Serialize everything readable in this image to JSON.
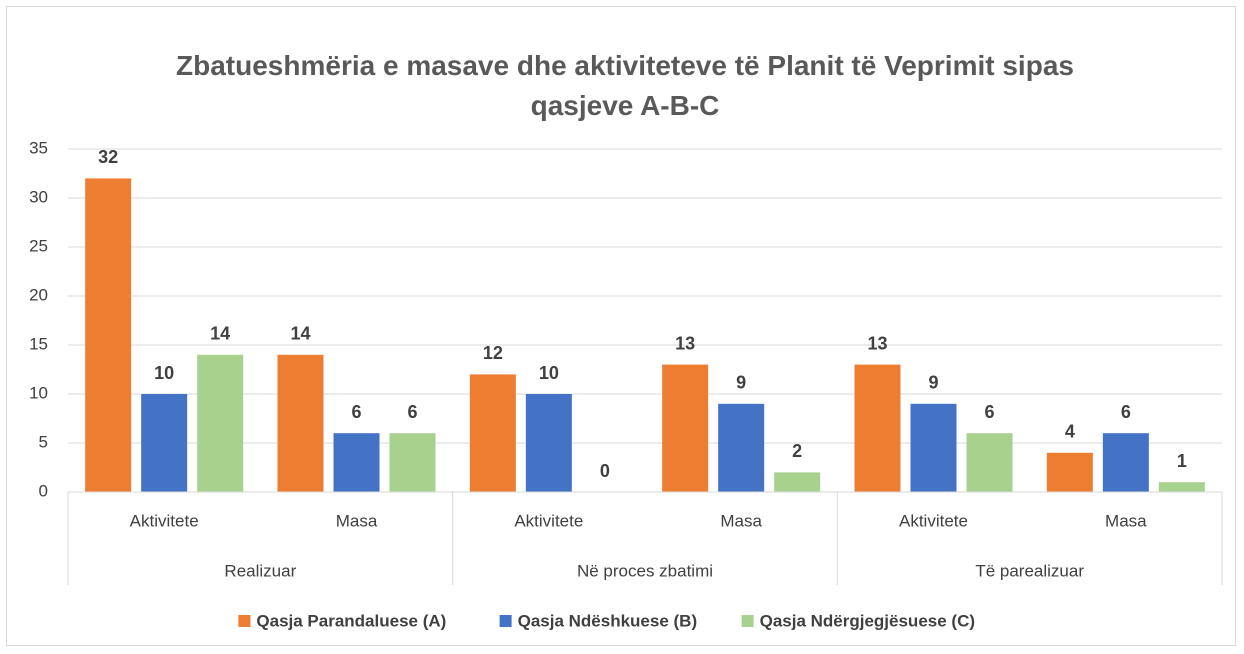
{
  "chart_data": {
    "type": "bar",
    "title": "Zbatueshmëria e masave dhe aktiviteteve të Planit të Veprimit sipas qasjeve A-B-C",
    "groups": [
      {
        "name": "Realizuar",
        "categories": [
          "Aktivitete",
          "Masa"
        ]
      },
      {
        "name": "Në proces zbatimi",
        "categories": [
          "Aktivitete",
          "Masa"
        ]
      },
      {
        "name": "Të parealizuar",
        "categories": [
          "Aktivitete",
          "Masa"
        ]
      }
    ],
    "series": [
      {
        "name": "Qasja Parandaluese (A)",
        "color": "#ed7d31",
        "values": [
          32,
          14,
          12,
          13,
          13,
          4
        ]
      },
      {
        "name": "Qasja Ndëshkuese (B)",
        "color": "#4472c4",
        "values": [
          10,
          6,
          10,
          9,
          9,
          6
        ]
      },
      {
        "name": "Qasja Ndërgjegjësuese (C)",
        "color": "#a9d18e",
        "values": [
          14,
          6,
          0,
          2,
          6,
          1
        ]
      }
    ],
    "ylim": [
      0,
      35
    ],
    "yticks": [
      0,
      5,
      10,
      15,
      20,
      25,
      30,
      35
    ],
    "grid": true,
    "legend": "bottom"
  }
}
